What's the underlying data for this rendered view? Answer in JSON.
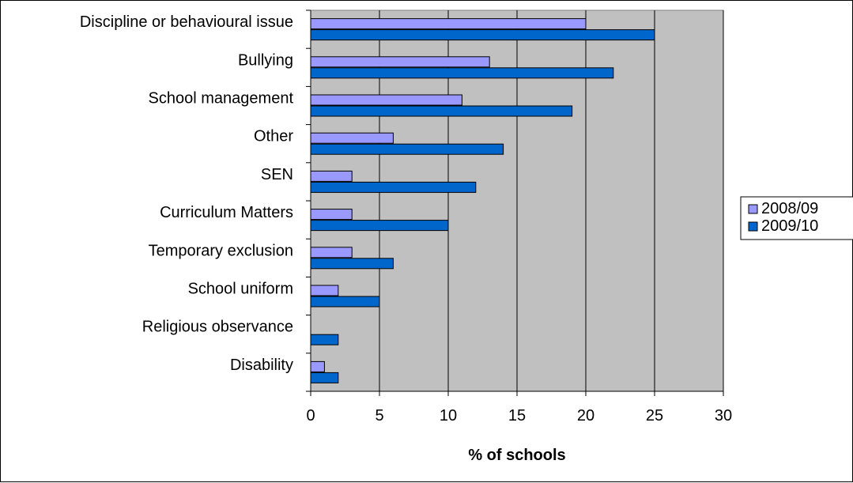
{
  "chart_data": {
    "type": "bar",
    "orientation": "horizontal",
    "categories": [
      "Discipline or behavioural issue",
      "Bullying",
      "School management",
      "Other",
      "SEN",
      "Curriculum Matters",
      "Temporary exclusion",
      "School uniform",
      "Religious observance",
      "Disability"
    ],
    "series": [
      {
        "name": "2008/09",
        "color": "#9999ff",
        "values": [
          20,
          13,
          11,
          6,
          3,
          3,
          3,
          2,
          0,
          1
        ]
      },
      {
        "name": "2009/10",
        "color": "#0066cc",
        "values": [
          25,
          22,
          19,
          14,
          12,
          10,
          6,
          5,
          2,
          2
        ]
      }
    ],
    "xlabel": "% of schools",
    "xlim": [
      0,
      30
    ],
    "xticks": [
      0,
      5,
      10,
      15,
      20,
      25,
      30
    ],
    "grid": true,
    "plot_background": "#c0c0c0",
    "legend_position": "right"
  }
}
